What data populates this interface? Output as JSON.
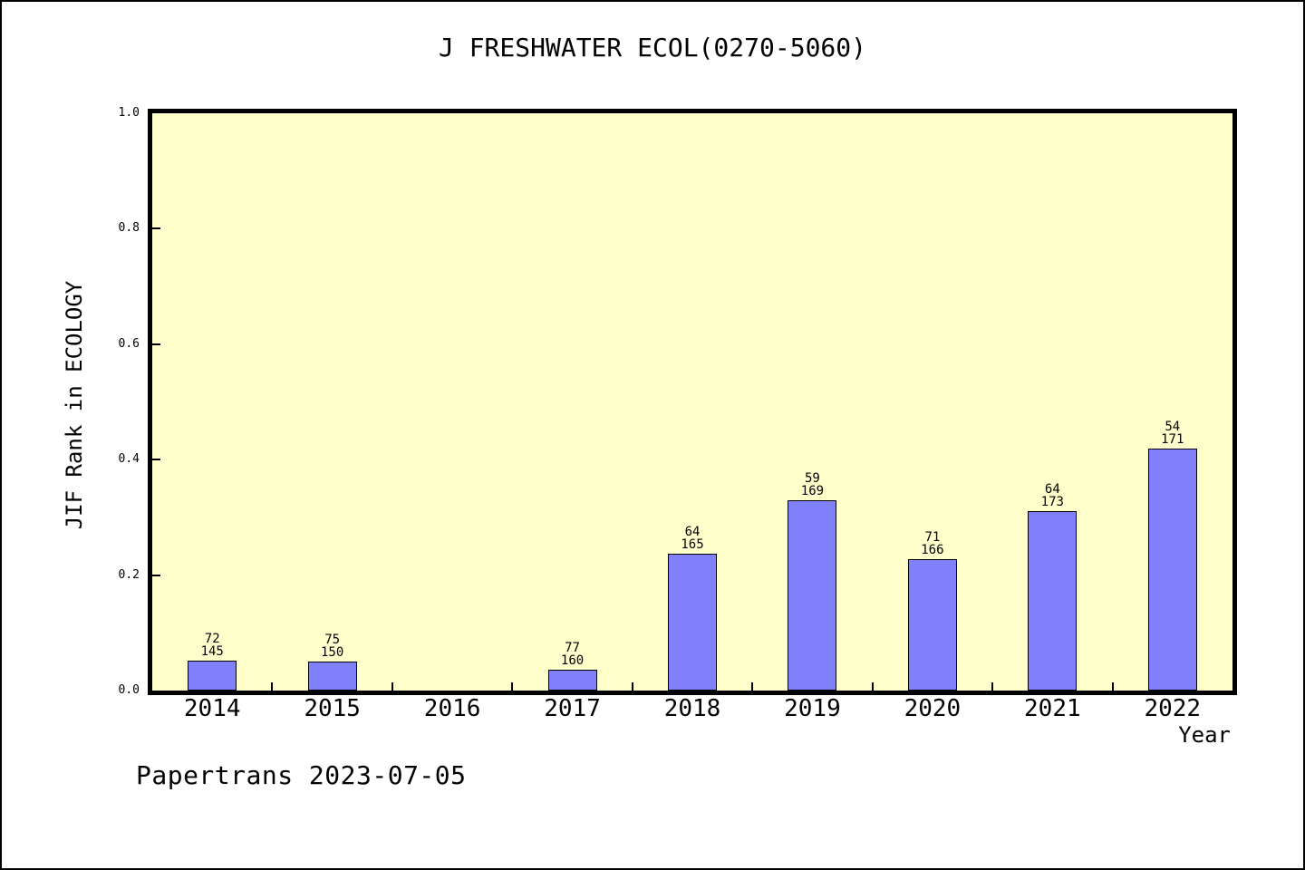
{
  "caption": "Papertrans 2023-07-05",
  "chart_data": {
    "type": "bar",
    "title": "J FRESHWATER ECOL(0270-5060)",
    "xlabel": "Year",
    "ylabel": "JIF Rank in ECOLOGY",
    "categories": [
      "2014",
      "2015",
      "2016",
      "2017",
      "2018",
      "2019",
      "2020",
      "2021",
      "2022"
    ],
    "values": [
      0.052,
      0.05,
      0,
      0.036,
      0.237,
      0.33,
      0.228,
      0.311,
      0.419
    ],
    "bar_labels": [
      [
        "72",
        "145"
      ],
      [
        "75",
        "150"
      ],
      [],
      [
        "77",
        "160"
      ],
      [
        "64",
        "165"
      ],
      [
        "59",
        "169"
      ],
      [
        "71",
        "166"
      ],
      [
        "64",
        "173"
      ],
      [
        "54",
        "171"
      ]
    ],
    "ylim": [
      0.0,
      1.0
    ],
    "yticks": [
      0.0,
      0.2,
      0.4,
      0.6,
      0.8,
      1.0
    ],
    "ytick_labels": [
      "0.0",
      "0.2",
      "0.4",
      "0.6",
      "0.8",
      "1.0"
    ],
    "grid": false,
    "legend_position": "none",
    "bar_color": "#8080fa",
    "bar_edge_color": "#000000",
    "plot_bg_color": "#ffffcc",
    "page_bg_color": "#ffffff",
    "text_color": "#000000"
  }
}
